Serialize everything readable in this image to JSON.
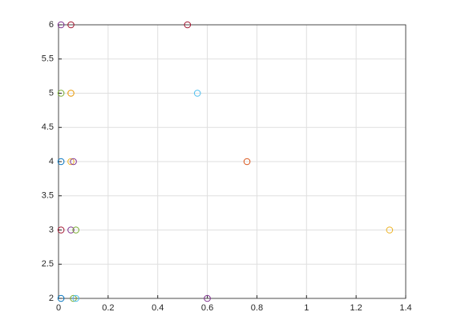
{
  "chart_data": {
    "type": "scatter",
    "xlim": [
      0,
      1.4
    ],
    "xticks": [
      0,
      0.2,
      0.4,
      0.6,
      0.8,
      1,
      1.2,
      1.4
    ],
    "ylim": [
      2,
      6
    ],
    "yticks": [
      2,
      2.5,
      3,
      3.5,
      4,
      4.5,
      5,
      5.5,
      6
    ],
    "grid": true,
    "series": [
      {
        "color": "#0072BD",
        "x": [
          0.01,
          0.01
        ],
        "y": [
          4,
          2
        ]
      },
      {
        "color": "#D95319",
        "x": [
          0.76,
          0.05
        ],
        "y": [
          4,
          5
        ]
      },
      {
        "color": "#EDB120",
        "x": [
          0.05,
          0.05,
          1.335
        ],
        "y": [
          5,
          4,
          3
        ]
      },
      {
        "color": "#7E2F8E",
        "x": [
          0.01,
          0.06,
          0.05,
          0.6
        ],
        "y": [
          6,
          4,
          3,
          2
        ]
      },
      {
        "color": "#77AC30",
        "x": [
          0.01,
          0.07,
          0.06
        ],
        "y": [
          5,
          3,
          2
        ]
      },
      {
        "color": "#4DBEEE",
        "x": [
          0.56,
          0.07
        ],
        "y": [
          5,
          2
        ]
      },
      {
        "color": "#A2142F",
        "x": [
          0.05,
          0.52,
          0.01
        ],
        "y": [
          6,
          6,
          3
        ]
      }
    ]
  }
}
